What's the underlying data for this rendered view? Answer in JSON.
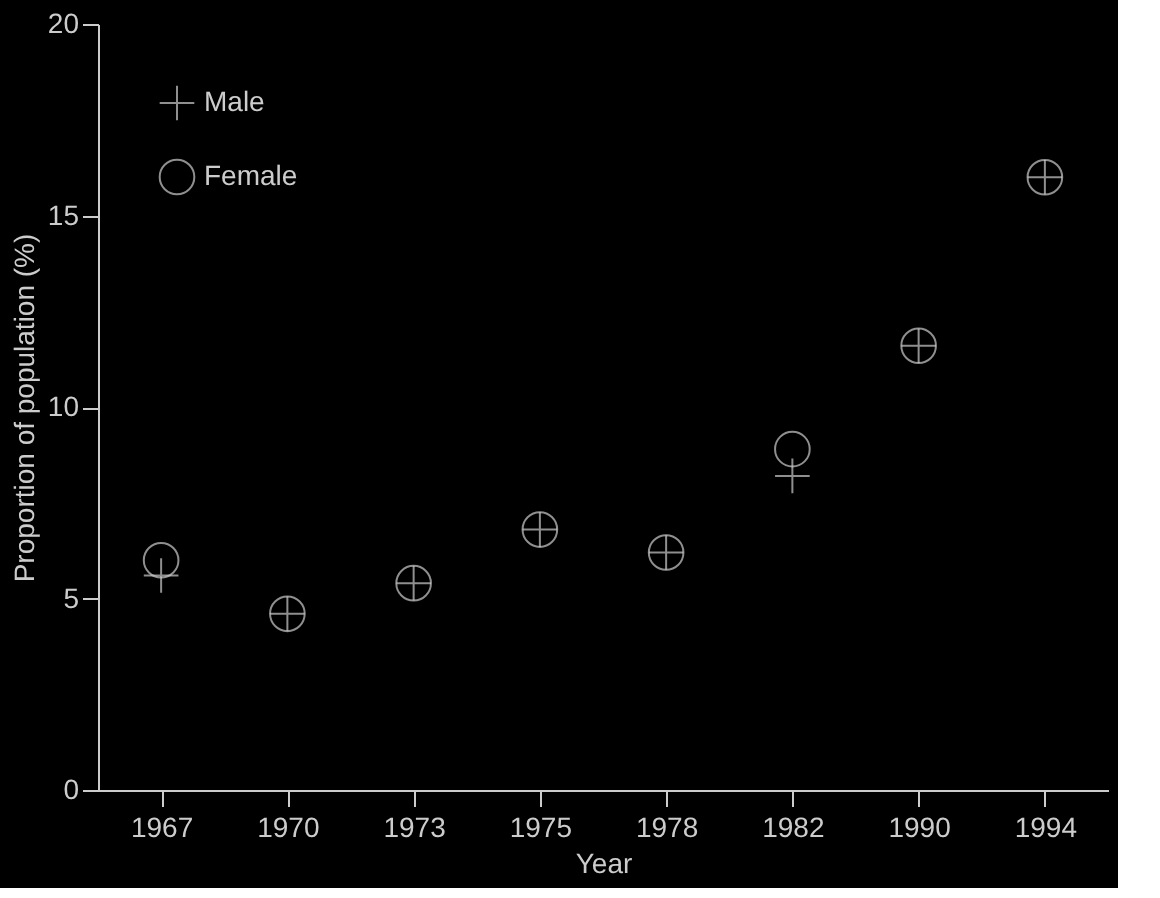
{
  "chart_data": {
    "type": "scatter",
    "xlabel": "Year",
    "ylabel": "Proportion of population (%)",
    "categories": [
      "1967",
      "1970",
      "1973",
      "1975",
      "1978",
      "1982",
      "1990",
      "1994"
    ],
    "series": [
      {
        "name": "Male",
        "color": "#cccccc",
        "marker": "cross",
        "values": [
          5.6,
          4.6,
          5.4,
          6.8,
          6.2,
          8.2,
          11.6,
          16.0
        ]
      },
      {
        "name": "Female",
        "color": "#cccccc",
        "marker": "circle",
        "values": [
          6.0,
          4.6,
          5.4,
          6.8,
          6.2,
          8.9,
          11.6,
          16.0
        ]
      }
    ],
    "ylim": [
      0,
      20
    ],
    "yticks": [
      0,
      5,
      10,
      15,
      20
    ],
    "grid": false,
    "legend": "top left"
  }
}
